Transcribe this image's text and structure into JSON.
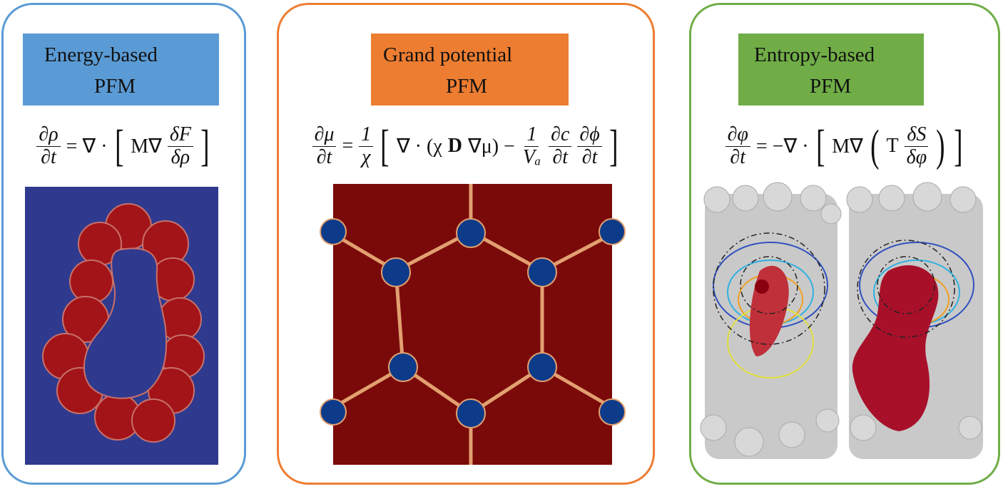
{
  "panels": [
    {
      "title": [
        "Energy-based",
        "PFM"
      ],
      "equation": [
        {
          "num": "∂ρ",
          "den": "∂t"
        },
        "= ∇ ·",
        "[",
        "M∇",
        {
          "num": "δF",
          "den": "δρ"
        },
        "]"
      ]
    },
    {
      "title": [
        "Grand potential",
        "PFM"
      ],
      "equation": [
        {
          "num": "∂μ",
          "den": "∂t"
        },
        "=",
        {
          "num": "1",
          "den": "χ"
        },
        "[",
        "∇ · (χ",
        "D",
        "∇μ) −",
        {
          "num": "1",
          "den": "Vₐ"
        },
        {
          "num": "∂c",
          "den": "∂t"
        },
        {
          "num": "∂ϕ",
          "den": "∂t"
        },
        "]"
      ]
    },
    {
      "title": [
        "Entropy-based",
        "PFM"
      ],
      "equation": [
        {
          "num": "∂φ",
          "den": "∂t"
        },
        "= −∇ ·",
        "[",
        "M∇",
        "(",
        "T",
        {
          "num": "δS",
          "den": "δφ"
        },
        ")",
        "]"
      ]
    }
  ]
}
